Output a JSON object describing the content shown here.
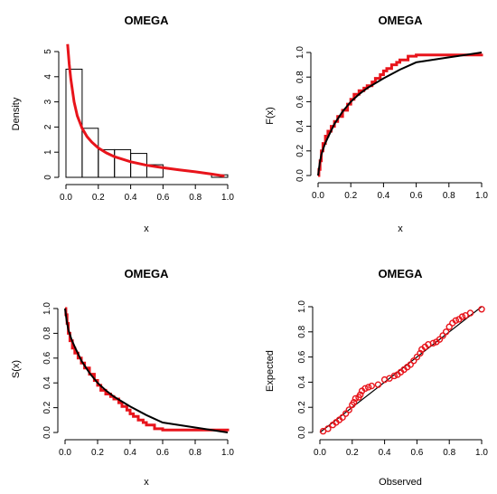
{
  "chart_data": [
    {
      "type": "histogram",
      "title": "OMEGA",
      "xlabel": "x",
      "ylabel": "Density",
      "xlim": [
        0,
        1
      ],
      "ylim": [
        0,
        5
      ],
      "xticks": [
        "0.0",
        "0.2",
        "0.4",
        "0.6",
        "0.8",
        "1.0"
      ],
      "yticks": [
        "0",
        "1",
        "2",
        "3",
        "4",
        "5"
      ],
      "bins": [
        {
          "x0": 0.0,
          "x1": 0.1,
          "density": 4.3
        },
        {
          "x0": 0.1,
          "x1": 0.2,
          "density": 1.95
        },
        {
          "x0": 0.2,
          "x1": 0.3,
          "density": 1.1
        },
        {
          "x0": 0.3,
          "x1": 0.4,
          "density": 1.1
        },
        {
          "x0": 0.4,
          "x1": 0.5,
          "density": 0.95
        },
        {
          "x0": 0.5,
          "x1": 0.6,
          "density": 0.5
        },
        {
          "x0": 0.6,
          "x1": 0.7,
          "density": 0.0
        },
        {
          "x0": 0.7,
          "x1": 0.8,
          "density": 0.0
        },
        {
          "x0": 0.8,
          "x1": 0.9,
          "density": 0.0
        },
        {
          "x0": 0.9,
          "x1": 1.0,
          "density": 0.1
        }
      ],
      "fitted_density": {
        "color": "#e8141b",
        "x": [
          0.01,
          0.02,
          0.03,
          0.05,
          0.07,
          0.1,
          0.13,
          0.16,
          0.2,
          0.25,
          0.3,
          0.4,
          0.5,
          0.6,
          0.7,
          0.8,
          0.9,
          0.98
        ],
        "y": [
          5.3,
          4.5,
          3.9,
          3.0,
          2.45,
          1.95,
          1.62,
          1.4,
          1.17,
          0.97,
          0.82,
          0.62,
          0.48,
          0.38,
          0.3,
          0.22,
          0.13,
          0.05
        ]
      }
    },
    {
      "type": "line",
      "title": "OMEGA",
      "xlabel": "x",
      "ylabel": "F(x)",
      "xlim": [
        0,
        1
      ],
      "ylim": [
        0,
        1
      ],
      "xticks": [
        "0.0",
        "0.2",
        "0.4",
        "0.6",
        "0.8",
        "1.0"
      ],
      "yticks": [
        "0.0",
        "0.2",
        "0.4",
        "0.6",
        "0.8",
        "1.0"
      ],
      "series": [
        {
          "role": "theoretical",
          "color": "#000000",
          "x": [
            0.0,
            0.01,
            0.02,
            0.04,
            0.06,
            0.1,
            0.15,
            0.2,
            0.25,
            0.3,
            0.4,
            0.5,
            0.6,
            0.8,
            1.0
          ],
          "y": [
            0.0,
            0.1,
            0.17,
            0.25,
            0.31,
            0.42,
            0.52,
            0.6,
            0.66,
            0.71,
            0.79,
            0.86,
            0.92,
            0.96,
            1.0
          ]
        },
        {
          "role": "empirical",
          "color": "#e8141b",
          "x": [
            0.0,
            0.005,
            0.012,
            0.02,
            0.03,
            0.045,
            0.06,
            0.08,
            0.1,
            0.12,
            0.15,
            0.18,
            0.2,
            0.22,
            0.25,
            0.28,
            0.3,
            0.33,
            0.35,
            0.38,
            0.4,
            0.42,
            0.45,
            0.48,
            0.5,
            0.55,
            0.6,
            0.65,
            0.7,
            0.8,
            0.9,
            0.95,
            1.0
          ],
          "y": [
            0.0,
            0.05,
            0.12,
            0.2,
            0.26,
            0.32,
            0.36,
            0.4,
            0.44,
            0.48,
            0.53,
            0.58,
            0.62,
            0.66,
            0.69,
            0.71,
            0.73,
            0.76,
            0.79,
            0.82,
            0.85,
            0.87,
            0.9,
            0.92,
            0.94,
            0.97,
            0.98,
            0.98,
            0.98,
            0.98,
            0.98,
            0.98,
            0.99
          ]
        }
      ]
    },
    {
      "type": "line",
      "title": "OMEGA",
      "xlabel": "x",
      "ylabel": "S(x)",
      "xlim": [
        0,
        1
      ],
      "ylim": [
        0,
        1
      ],
      "xticks": [
        "0.0",
        "0.2",
        "0.4",
        "0.6",
        "0.8",
        "1.0"
      ],
      "yticks": [
        "0.0",
        "0.2",
        "0.4",
        "0.6",
        "0.8",
        "1.0"
      ],
      "series": [
        {
          "role": "theoretical",
          "color": "#000000",
          "x": [
            0.0,
            0.01,
            0.02,
            0.04,
            0.06,
            0.1,
            0.15,
            0.2,
            0.25,
            0.3,
            0.4,
            0.5,
            0.6,
            0.8,
            1.0
          ],
          "y": [
            1.0,
            0.9,
            0.83,
            0.75,
            0.69,
            0.58,
            0.48,
            0.4,
            0.34,
            0.29,
            0.21,
            0.14,
            0.08,
            0.04,
            0.0
          ]
        },
        {
          "role": "empirical",
          "color": "#e8141b",
          "x": [
            0.0,
            0.005,
            0.012,
            0.02,
            0.03,
            0.045,
            0.06,
            0.08,
            0.1,
            0.12,
            0.15,
            0.18,
            0.2,
            0.22,
            0.25,
            0.28,
            0.3,
            0.33,
            0.35,
            0.38,
            0.4,
            0.42,
            0.45,
            0.48,
            0.5,
            0.55,
            0.6,
            0.65,
            0.7,
            0.8,
            0.9,
            0.95,
            1.0
          ],
          "y": [
            1.0,
            0.95,
            0.88,
            0.8,
            0.74,
            0.68,
            0.64,
            0.6,
            0.56,
            0.52,
            0.47,
            0.42,
            0.38,
            0.34,
            0.31,
            0.29,
            0.27,
            0.24,
            0.21,
            0.18,
            0.15,
            0.13,
            0.1,
            0.08,
            0.06,
            0.03,
            0.02,
            0.02,
            0.02,
            0.02,
            0.02,
            0.02,
            0.01
          ]
        }
      ]
    },
    {
      "type": "scatter",
      "title": "OMEGA",
      "xlabel": "Observed",
      "ylabel": "Expected",
      "xlim": [
        0,
        1
      ],
      "ylim": [
        0,
        1
      ],
      "xticks": [
        "0.0",
        "0.2",
        "0.4",
        "0.6",
        "0.8",
        "1.0"
      ],
      "yticks": [
        "0.0",
        "0.2",
        "0.4",
        "0.6",
        "0.8",
        "1.0"
      ],
      "reference_line": {
        "color": "#000000",
        "x": [
          0.0,
          1.0
        ],
        "y": [
          0.0,
          1.0
        ]
      },
      "points": {
        "color": "#e8141b",
        "x": [
          0.02,
          0.05,
          0.08,
          0.1,
          0.12,
          0.14,
          0.16,
          0.18,
          0.2,
          0.21,
          0.22,
          0.24,
          0.25,
          0.26,
          0.28,
          0.3,
          0.32,
          0.36,
          0.4,
          0.43,
          0.46,
          0.48,
          0.5,
          0.52,
          0.54,
          0.56,
          0.58,
          0.6,
          0.62,
          0.63,
          0.65,
          0.67,
          0.7,
          0.72,
          0.74,
          0.76,
          0.78,
          0.8,
          0.82,
          0.84,
          0.86,
          0.88,
          0.9,
          0.93,
          1.0
        ],
        "y": [
          0.01,
          0.03,
          0.06,
          0.08,
          0.1,
          0.12,
          0.15,
          0.18,
          0.22,
          0.24,
          0.27,
          0.28,
          0.3,
          0.33,
          0.35,
          0.36,
          0.37,
          0.38,
          0.42,
          0.43,
          0.45,
          0.46,
          0.48,
          0.5,
          0.52,
          0.54,
          0.57,
          0.6,
          0.63,
          0.66,
          0.68,
          0.7,
          0.71,
          0.72,
          0.74,
          0.77,
          0.8,
          0.84,
          0.87,
          0.89,
          0.9,
          0.92,
          0.93,
          0.95,
          0.98
        ]
      }
    }
  ]
}
